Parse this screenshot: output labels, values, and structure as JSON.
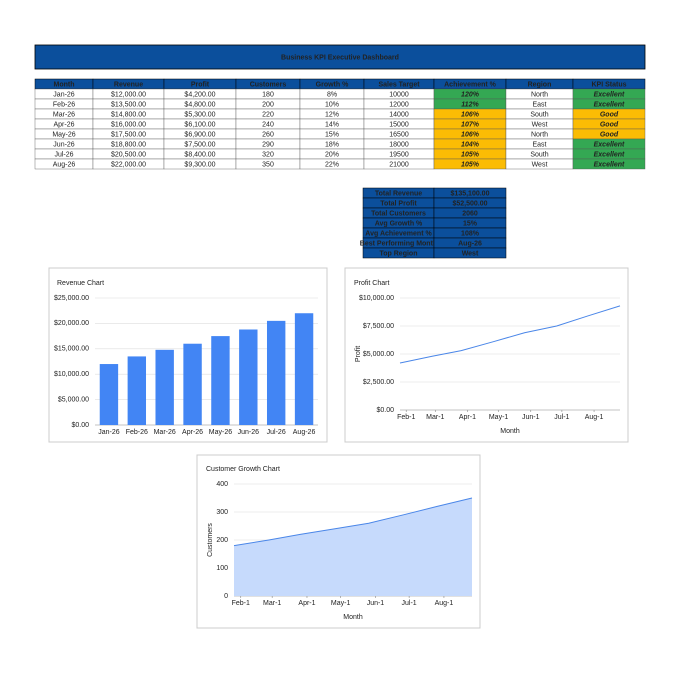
{
  "header": {
    "title": "Business KPI Executive Dashboard"
  },
  "table": {
    "columns": [
      "Month",
      "Revenue",
      "Profit",
      "Customers",
      "Growth %",
      "Sales Target",
      "Achievement %",
      "Region",
      "KPI Status"
    ],
    "rows": [
      [
        "Jan-26",
        "$12,000.00",
        "$4,200.00",
        "180",
        "8%",
        "10000",
        "120%",
        "North",
        "Excellent"
      ],
      [
        "Feb-26",
        "$13,500.00",
        "$4,800.00",
        "200",
        "10%",
        "12000",
        "112%",
        "East",
        "Excellent"
      ],
      [
        "Mar-26",
        "$14,800.00",
        "$5,300.00",
        "220",
        "12%",
        "14000",
        "106%",
        "South",
        "Good"
      ],
      [
        "Apr-26",
        "$16,000.00",
        "$6,100.00",
        "240",
        "14%",
        "15000",
        "107%",
        "West",
        "Good"
      ],
      [
        "May-26",
        "$17,500.00",
        "$6,900.00",
        "260",
        "15%",
        "16500",
        "106%",
        "North",
        "Good"
      ],
      [
        "Jun-26",
        "$18,800.00",
        "$7,500.00",
        "290",
        "18%",
        "18000",
        "104%",
        "East",
        "Excellent"
      ],
      [
        "Jul-26",
        "$20,500.00",
        "$8,400.00",
        "320",
        "20%",
        "19500",
        "105%",
        "South",
        "Excellent"
      ],
      [
        "Aug-26",
        "$22,000.00",
        "$9,300.00",
        "350",
        "22%",
        "21000",
        "105%",
        "West",
        "Excellent"
      ]
    ],
    "achievement_colors": [
      "#34a853",
      "#34a853",
      "#fbbc04",
      "#fbbc04",
      "#fbbc04",
      "#fbbc04",
      "#fbbc04",
      "#fbbc04"
    ],
    "status_colors": [
      "#34a853",
      "#34a853",
      "#fbbc04",
      "#fbbc04",
      "#fbbc04",
      "#34a853",
      "#34a853",
      "#34a853"
    ]
  },
  "summary": {
    "rows": [
      [
        "Total Revenue",
        "$135,100.00"
      ],
      [
        "Total Profit",
        "$52,500.00"
      ],
      [
        "Total Customers",
        "2060"
      ],
      [
        "Avg Growth %",
        "15%"
      ],
      [
        "Avg Achievement %",
        "108%"
      ],
      [
        "Best Performing Month",
        "Aug-26"
      ],
      [
        "Top Region",
        "West"
      ]
    ]
  },
  "chart_data": [
    {
      "type": "bar",
      "title": "Revenue Chart",
      "categories": [
        "Jan-26",
        "Feb-26",
        "Mar-26",
        "Apr-26",
        "May-26",
        "Jun-26",
        "Jul-26",
        "Aug-26"
      ],
      "values": [
        12000,
        13500,
        14800,
        16000,
        17500,
        18800,
        20500,
        22000
      ],
      "color": "#4285f4",
      "grid": true,
      "ylim": [
        0,
        25000
      ],
      "yticks": [
        {
          "value": 0,
          "label": "$0.00"
        },
        {
          "value": 5000,
          "label": "$5,000.00"
        },
        {
          "value": 10000,
          "label": "$10,000.00"
        },
        {
          "value": 15000,
          "label": "$15,000.00"
        },
        {
          "value": 20000,
          "label": "$20,000.00"
        },
        {
          "value": 25000,
          "label": "$25,000.00"
        }
      ]
    },
    {
      "type": "line",
      "title": "Profit Chart",
      "x": [
        "Jan-26",
        "Feb-26",
        "Mar-26",
        "Apr-26",
        "May-26",
        "Jun-26",
        "Jul-26",
        "Aug-26"
      ],
      "values": [
        4200,
        4800,
        5300,
        6100,
        6900,
        7500,
        8400,
        9300
      ],
      "color": "#4a86e8",
      "grid": true,
      "xlabel": "Month",
      "ylabel": "Profit",
      "xlim": [
        "Jan-26",
        "Aug-26"
      ],
      "xticks": [
        "Feb-1",
        "Mar-1",
        "Apr-1",
        "May-1",
        "Jun-1",
        "Jul-1",
        "Aug-1"
      ],
      "ylim": [
        0,
        10000
      ],
      "yticks": [
        {
          "value": 0,
          "label": "$0.00"
        },
        {
          "value": 2500,
          "label": "$2,500.00"
        },
        {
          "value": 5000,
          "label": "$5,000.00"
        },
        {
          "value": 7500,
          "label": "$7,500.00"
        },
        {
          "value": 10000,
          "label": "$10,000.00"
        }
      ]
    },
    {
      "type": "area",
      "title": "Customer Growth Chart",
      "x": [
        "Jan-26",
        "Feb-26",
        "Mar-26",
        "Apr-26",
        "May-26",
        "Jun-26",
        "Jul-26",
        "Aug-26"
      ],
      "values": [
        180,
        200,
        220,
        240,
        260,
        290,
        320,
        350
      ],
      "color": "#4a86e8",
      "fill": "#c6dafc",
      "grid": true,
      "xlabel": "Month",
      "ylabel": "Customers",
      "xlim": [
        "Jan-26",
        "Aug-26"
      ],
      "xticks": [
        "Feb-1",
        "Mar-1",
        "Apr-1",
        "May-1",
        "Jun-1",
        "Jul-1",
        "Aug-1"
      ],
      "ylim": [
        0,
        400
      ],
      "yticks": [
        0,
        100,
        200,
        300,
        400
      ]
    }
  ]
}
